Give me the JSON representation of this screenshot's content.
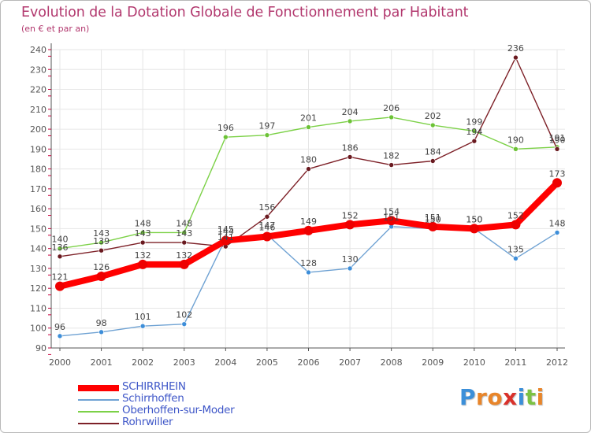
{
  "title": "Evolution de la Dotation Globale de Fonctionnement par Habitant",
  "subtitle": "(en € et par an)",
  "brand": "Proxiti",
  "colors": {
    "title": "#b2386e",
    "legend_text": "#3f57c8",
    "axis": "#555555",
    "tick_mark": "#c8003c",
    "grid": "#e6e6e6",
    "label": "#555555"
  },
  "chart_data": {
    "type": "line",
    "title": "Evolution de la Dotation Globale de Fonctionnement par Habitant",
    "subtitle": "(en € et par an)",
    "xlabel": "",
    "ylabel": "",
    "categories": [
      "2000",
      "2001",
      "2002",
      "2003",
      "2004",
      "2005",
      "2006",
      "2007",
      "2008",
      "2009",
      "2010",
      "2011",
      "2012"
    ],
    "ylim": [
      90,
      240
    ],
    "yticks": [
      "90",
      "100",
      "110",
      "120",
      "130",
      "140",
      "150",
      "160",
      "170",
      "180",
      "190",
      "200",
      "210",
      "220",
      "230",
      "240"
    ],
    "grid": true,
    "legend_position": "bottom-left",
    "series": [
      {
        "name": "Oberhoffen-sur-Moder",
        "color": "#7cd147",
        "marker": "#6cc236",
        "values": [
          140,
          143,
          148,
          148,
          196,
          197,
          201,
          204,
          206,
          202,
          199,
          190,
          191
        ],
        "thick": false
      },
      {
        "name": "Rohrwiller",
        "color": "#7d2027",
        "marker": "#6a1a20",
        "values": [
          136,
          139,
          143,
          143,
          141,
          156,
          180,
          186,
          182,
          184,
          194,
          236,
          190
        ],
        "thick": false
      },
      {
        "name": "Schirrhoffen",
        "color": "#6fa2d3",
        "marker": "#3d8ed9",
        "values": [
          96,
          98,
          101,
          102,
          145,
          147,
          128,
          130,
          151,
          150,
          150,
          135,
          148
        ],
        "thick": false
      },
      {
        "name": "SCHIRRHEIN",
        "color": "#ff0000",
        "marker": "#ee0000",
        "values": [
          121,
          126,
          132,
          132,
          144,
          146,
          149,
          152,
          154,
          151,
          150,
          152,
          173
        ],
        "thick": true
      }
    ],
    "legend": [
      "SCHIRRHEIN",
      "Schirrhoffen",
      "Oberhoffen-sur-Moder",
      "Rohrwiller"
    ]
  }
}
